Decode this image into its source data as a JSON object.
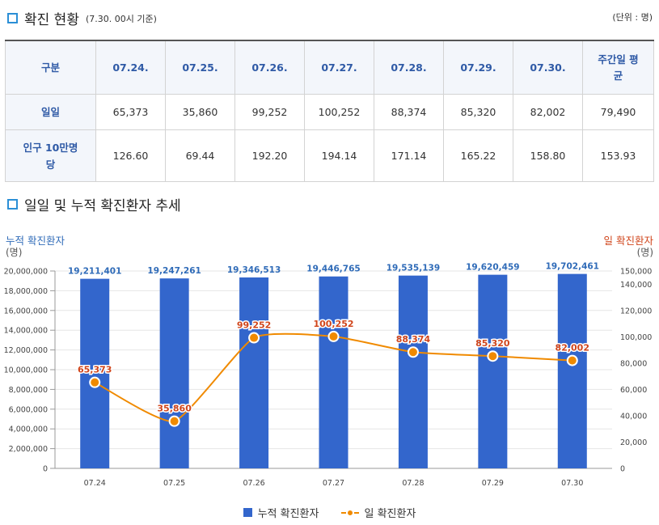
{
  "section1": {
    "title": "확진 현황",
    "subtitle": "(7.30. 00시 기준)",
    "unit": "(단위 : 명)"
  },
  "table": {
    "header": [
      "구분",
      "07.24.",
      "07.25.",
      "07.26.",
      "07.27.",
      "07.28.",
      "07.29.",
      "07.30.",
      "주간일 평균"
    ],
    "rows": [
      {
        "label": "일일",
        "values": [
          "65,373",
          "35,860",
          "99,252",
          "100,252",
          "88,374",
          "85,320",
          "82,002",
          "79,490"
        ]
      },
      {
        "label": "인구 10만명 당",
        "values": [
          "126.60",
          "69.44",
          "192.20",
          "194.14",
          "171.14",
          "165.22",
          "158.80",
          "153.93"
        ]
      }
    ]
  },
  "section2": {
    "title": "일일 및 누적 확진환자 추세"
  },
  "colors": {
    "bar": "#3366cc",
    "line": "#f08a00",
    "left_label": "#2f6bb8",
    "right_label": "#d0451b",
    "accent": "#2b8fd6"
  },
  "chart_data": {
    "type": "bar+line",
    "title": "일일 및 누적 확진환자 추세",
    "categories": [
      "07.24",
      "07.25",
      "07.26",
      "07.27",
      "07.28",
      "07.29",
      "07.30"
    ],
    "series": [
      {
        "name": "누적 확진환자",
        "type": "bar",
        "axis": "left",
        "values": [
          19211401,
          19247261,
          19346513,
          19446765,
          19535139,
          19620459,
          19702461
        ],
        "labels": [
          "19,211,401",
          "19,247,261",
          "19,346,513",
          "19,446,765",
          "19,535,139",
          "19,620,459",
          "19,702,461"
        ]
      },
      {
        "name": "일 확진환자",
        "type": "line",
        "axis": "right",
        "values": [
          65373,
          35860,
          99252,
          100252,
          88374,
          85320,
          82002
        ],
        "labels": [
          "65,373",
          "35,860",
          "99,252",
          "100,252",
          "88,374",
          "85,320",
          "82,002"
        ]
      }
    ],
    "left_axis": {
      "label": "누적 확진환자",
      "unit": "(명)",
      "min": 0,
      "max": 20000000,
      "ticks": [
        0,
        2000000,
        4000000,
        6000000,
        8000000,
        10000000,
        12000000,
        14000000,
        16000000,
        18000000,
        20000000
      ],
      "tick_labels": [
        "0",
        "2,000,000",
        "4,000,000",
        "6,000,000",
        "8,000,000",
        "10,000,000",
        "12,000,000",
        "14,000,000",
        "16,000,000",
        "18,000,000",
        "20,000,000"
      ]
    },
    "right_axis": {
      "label": "일 확진환자",
      "unit": "(명)",
      "min": 0,
      "max": 150000,
      "ticks": [
        0,
        20000,
        40000,
        60000,
        80000,
        100000,
        120000,
        140000,
        150000
      ],
      "tick_labels": [
        "0",
        "20,000",
        "40,000",
        "60,000",
        "80,000",
        "100,000",
        "120,000",
        "140,000",
        "150,000"
      ]
    },
    "legend": [
      "누적 확진환자",
      "일 확진환자"
    ],
    "grid": true
  }
}
